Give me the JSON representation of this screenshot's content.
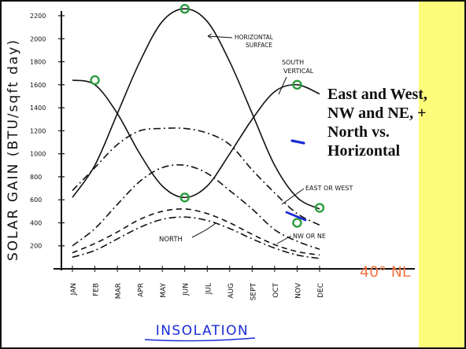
{
  "slide": {
    "callout_lines": [
      "East and West,",
      "NW and NE, +",
      "North vs.",
      "Horizontal"
    ],
    "side_panel_color": "#fdfb7a"
  },
  "chart_data": {
    "type": "line",
    "title": "INSOLATION",
    "ylabel": "SOLAR GAIN (BTU/sqft day)",
    "xlabel": "",
    "ylim": [
      0,
      2250
    ],
    "y_ticks": [
      200,
      400,
      600,
      800,
      1000,
      1200,
      1400,
      1600,
      1800,
      2000,
      2200
    ],
    "categories": [
      "JAN",
      "FEB",
      "MAR",
      "APR",
      "MAY",
      "JUN",
      "JUL",
      "AUG",
      "SEPT",
      "OCT",
      "NOV",
      "DEC"
    ],
    "series": [
      {
        "name": "HORIZONTAL SURFACE",
        "style": "solid",
        "color": "#111111",
        "values": [
          620,
          900,
          1350,
          1800,
          2150,
          2260,
          2150,
          1800,
          1350,
          900,
          620,
          520
        ]
      },
      {
        "name": "SOUTH VERTICAL",
        "style": "solid",
        "color": "#111111",
        "values": [
          1640,
          1600,
          1350,
          1000,
          720,
          620,
          720,
          1000,
          1300,
          1540,
          1600,
          1520
        ]
      },
      {
        "name": "",
        "style": "dashdot",
        "color": "#111111",
        "values": [
          680,
          880,
          1080,
          1200,
          1220,
          1220,
          1180,
          1080,
          860,
          660,
          480,
          380
        ]
      },
      {
        "name": "EAST OR WEST",
        "style": "dashdot",
        "color": "#111111",
        "values": [
          200,
          350,
          560,
          760,
          880,
          900,
          830,
          680,
          520,
          340,
          240,
          170
        ]
      },
      {
        "name": "NW OR NE",
        "style": "dashed",
        "color": "#111111",
        "values": [
          140,
          220,
          320,
          430,
          500,
          520,
          480,
          400,
          300,
          210,
          150,
          120
        ]
      },
      {
        "name": "NORTH",
        "style": "dashdot",
        "color": "#111111",
        "values": [
          100,
          160,
          260,
          360,
          430,
          450,
          420,
          350,
          260,
          180,
          120,
          90
        ]
      }
    ],
    "markers": [
      {
        "month": "FEB",
        "value": 1640,
        "color": "#2a9d3e"
      },
      {
        "month": "JUN",
        "value": 2260,
        "color": "#2a9d3e"
      },
      {
        "month": "JUN",
        "value": 620,
        "color": "#2a9d3e"
      },
      {
        "month": "NOV",
        "value": 1600,
        "color": "#2a9d3e"
      },
      {
        "month": "NOV",
        "value": 400,
        "color": "#2a9d3e"
      },
      {
        "month": "DEC",
        "value": 530,
        "color": "#2a9d3e"
      }
    ],
    "series_labels": {
      "horizontal": "HORIZONTAL SURFACE",
      "south_1": "SOUTH",
      "south_2": "VERTICAL",
      "east_west": "EAST OR WEST",
      "nw_ne": "NW OR NE",
      "north": "NORTH"
    },
    "annotation": "40° NL",
    "annotation_color": "#f4784a"
  }
}
